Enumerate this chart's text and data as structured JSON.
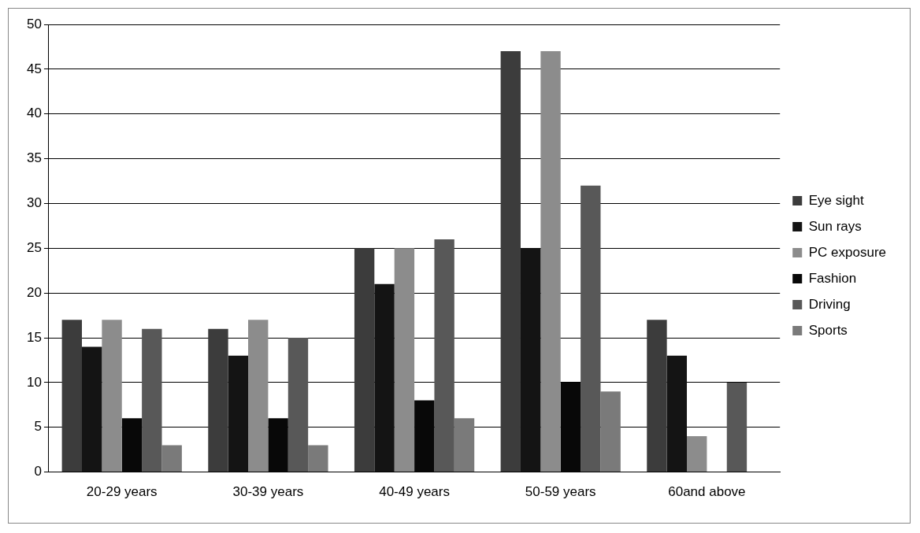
{
  "chart_data": {
    "type": "bar",
    "categories": [
      "20-29 years",
      "30-39 years",
      "40-49 years",
      "50-59 years",
      "60and above"
    ],
    "series": [
      {
        "name": "Eye sight",
        "color": "#3c3c3c",
        "values": [
          17,
          16,
          25,
          47,
          17
        ]
      },
      {
        "name": "Sun rays",
        "color": "#141414",
        "values": [
          14,
          13,
          21,
          25,
          13
        ]
      },
      {
        "name": "PC exposure",
        "color": "#8c8c8c",
        "values": [
          17,
          17,
          25,
          47,
          4
        ]
      },
      {
        "name": "Fashion",
        "color": "#080808",
        "values": [
          6,
          6,
          8,
          10,
          0
        ]
      },
      {
        "name": "Driving",
        "color": "#585858",
        "values": [
          16,
          15,
          26,
          32,
          10
        ]
      },
      {
        "name": "Sports",
        "color": "#7a7a7a",
        "values": [
          3,
          3,
          6,
          9,
          0
        ]
      }
    ],
    "ylim": [
      0,
      50
    ],
    "yticks": [
      0,
      5,
      10,
      15,
      20,
      25,
      30,
      35,
      40,
      45,
      50
    ],
    "grid": "y",
    "legend": "right"
  }
}
